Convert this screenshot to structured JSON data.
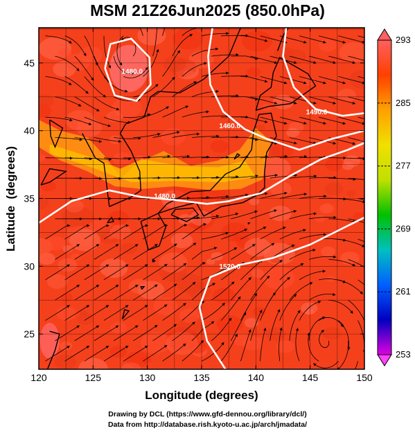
{
  "title": "MSM 21Z26Jun2025 (850.0hPa)",
  "credits": {
    "line1": "Drawing by DCL (https://www.gfd-dennou.org/library/dcl/)",
    "line2": "Data from http://database.rish.kyoto-u.ac.jp/arch/jmadata/"
  },
  "chart_data": {
    "type": "heatmap",
    "title": "MSM 21Z26Jun2025 (850.0hPa)",
    "xlabel": "Longitude (degrees)",
    "ylabel": "Latitude  (degrees)",
    "xlim": [
      120,
      150
    ],
    "ylim": [
      22.4,
      47.6
    ],
    "x_ticks": [
      120,
      125,
      130,
      135,
      140,
      145,
      150
    ],
    "y_ticks": [
      25,
      30,
      35,
      40,
      45
    ],
    "grid": true,
    "colorbar": {
      "min": 253,
      "max": 293,
      "ticks": [
        253,
        261,
        269,
        277,
        285,
        293
      ],
      "colors": [
        "#e000e0",
        "#0000c0",
        "#0060ff",
        "#00c0c0",
        "#00c000",
        "#c0e000",
        "#f0e000",
        "#ffa000",
        "#ff4000",
        "#ff6060"
      ]
    },
    "contour_labels": [
      {
        "text": "1520.0",
        "lon": 137.6,
        "lat": 29.8
      },
      {
        "text": "1480.0",
        "lon": 131.6,
        "lat": 35.0
      },
      {
        "text": "1460.0",
        "lon": 137.6,
        "lat": 40.2
      },
      {
        "text": "1490.0",
        "lon": 145.6,
        "lat": 41.2
      },
      {
        "text": "1480.0",
        "lon": 128.6,
        "lat": 44.2
      }
    ],
    "contours": [
      {
        "level": "1520.0",
        "points": [
          [
            137.2,
            22.4
          ],
          [
            135.5,
            24.5
          ],
          [
            134.8,
            27.0
          ],
          [
            135.8,
            29.2
          ],
          [
            138.5,
            30.1
          ],
          [
            141.5,
            30.6
          ],
          [
            145.0,
            31.6
          ],
          [
            148.0,
            32.8
          ],
          [
            150.0,
            33.6
          ]
        ]
      },
      {
        "level": "1480.0",
        "points": [
          [
            120.0,
            33.2
          ],
          [
            123.0,
            34.8
          ],
          [
            126.5,
            35.6
          ],
          [
            129.5,
            35.1
          ],
          [
            132.5,
            34.9
          ],
          [
            135.5,
            34.6
          ],
          [
            137.5,
            34.8
          ],
          [
            140.5,
            35.4
          ],
          [
            143.0,
            36.6
          ],
          [
            146.0,
            37.9
          ],
          [
            148.5,
            38.6
          ],
          [
            150.0,
            39.1
          ]
        ]
      },
      {
        "level": "1460.0",
        "points": [
          [
            136.0,
            47.6
          ],
          [
            135.6,
            45.5
          ],
          [
            135.8,
            43.4
          ],
          [
            137.0,
            41.4
          ],
          [
            139.0,
            40.1
          ],
          [
            141.0,
            39.4
          ],
          [
            144.0,
            38.6
          ],
          [
            147.0,
            39.4
          ],
          [
            150.0,
            40.0
          ]
        ]
      },
      {
        "level": "1490.0",
        "points": [
          [
            142.8,
            47.6
          ],
          [
            142.5,
            45.5
          ],
          [
            143.5,
            43.2
          ],
          [
            145.5,
            41.6
          ],
          [
            148.0,
            41.1
          ],
          [
            150.0,
            41.3
          ]
        ]
      },
      {
        "level": "1480.0",
        "points": [
          [
            126.1,
            44.6
          ],
          [
            126.6,
            46.4
          ],
          [
            128.5,
            46.8
          ],
          [
            130.2,
            45.4
          ],
          [
            130.3,
            43.4
          ],
          [
            129.0,
            42.2
          ],
          [
            127.0,
            42.6
          ],
          [
            126.1,
            44.6
          ]
        ]
      }
    ],
    "coastlines": [
      [
        [
          129.4,
          33.3
        ],
        [
          130.1,
          31.2
        ],
        [
          131.1,
          31.5
        ],
        [
          131.7,
          32.9
        ],
        [
          131.0,
          33.9
        ],
        [
          129.4,
          33.3
        ]
      ],
      [
        [
          131.0,
          33.9
        ],
        [
          132.5,
          34.3
        ],
        [
          134.5,
          34.7
        ],
        [
          135.2,
          33.7
        ],
        [
          136.8,
          34.4
        ],
        [
          138.8,
          34.7
        ],
        [
          140.0,
          35.2
        ],
        [
          140.8,
          35.8
        ],
        [
          140.8,
          37.0
        ],
        [
          141.0,
          38.4
        ],
        [
          141.9,
          39.6
        ],
        [
          141.4,
          41.3
        ],
        [
          140.3,
          41.2
        ],
        [
          139.8,
          40.0
        ],
        [
          139.6,
          38.6
        ],
        [
          138.5,
          37.3
        ],
        [
          137.2,
          36.8
        ],
        [
          135.8,
          35.6
        ],
        [
          134.0,
          35.5
        ],
        [
          131.8,
          34.6
        ],
        [
          131.0,
          33.9
        ]
      ],
      [
        [
          132.2,
          33.8
        ],
        [
          133.6,
          33.3
        ],
        [
          134.7,
          33.8
        ],
        [
          134.2,
          34.3
        ],
        [
          132.6,
          34.2
        ],
        [
          132.2,
          33.8
        ]
      ],
      [
        [
          140.0,
          41.5
        ],
        [
          141.2,
          41.8
        ],
        [
          143.2,
          42.0
        ],
        [
          145.5,
          43.3
        ],
        [
          144.8,
          44.2
        ],
        [
          142.2,
          45.4
        ],
        [
          141.6,
          44.3
        ],
        [
          141.4,
          43.2
        ],
        [
          140.4,
          42.6
        ],
        [
          140.0,
          41.5
        ]
      ],
      [
        [
          126.5,
          34.4
        ],
        [
          128.5,
          35.1
        ],
        [
          129.4,
          35.6
        ],
        [
          129.3,
          37.0
        ],
        [
          128.5,
          38.5
        ],
        [
          127.5,
          39.8
        ],
        [
          128.0,
          40.5
        ],
        [
          129.7,
          41.0
        ],
        [
          130.3,
          42.5
        ],
        [
          131.0,
          42.9
        ]
      ],
      [
        [
          126.3,
          33.2
        ],
        [
          126.9,
          33.3
        ],
        [
          126.7,
          33.6
        ],
        [
          126.3,
          33.2
        ]
      ],
      [
        [
          120.2,
          36.0
        ],
        [
          121.0,
          37.2
        ],
        [
          122.5,
          37.0
        ],
        [
          121.0,
          36.2
        ],
        [
          120.2,
          36.0
        ]
      ],
      [
        [
          121.0,
          40.8
        ],
        [
          122.2,
          40.2
        ],
        [
          121.5,
          38.8
        ],
        [
          121.1,
          39.6
        ],
        [
          121.0,
          40.8
        ]
      ],
      [
        [
          124.0,
          39.8
        ],
        [
          125.2,
          38.0
        ],
        [
          126.0,
          37.6
        ],
        [
          126.5,
          34.4
        ]
      ],
      [
        [
          131.0,
          42.9
        ],
        [
          133.0,
          42.8
        ],
        [
          135.2,
          43.8
        ],
        [
          137.5,
          45.5
        ],
        [
          138.6,
          47.6
        ]
      ],
      [
        [
          142.0,
          45.9
        ],
        [
          142.5,
          47.0
        ],
        [
          143.0,
          47.6
        ]
      ],
      [
        [
          121.0,
          25.2
        ],
        [
          121.9,
          25.0
        ],
        [
          121.5,
          23.8
        ],
        [
          120.8,
          22.4
        ]
      ],
      [
        [
          127.7,
          26.1
        ],
        [
          128.3,
          26.7
        ],
        [
          127.9,
          26.8
        ],
        [
          127.7,
          26.1
        ]
      ],
      [
        [
          129.5,
          28.3
        ],
        [
          129.7,
          28.5
        ],
        [
          129.4,
          28.5
        ],
        [
          129.5,
          28.3
        ]
      ],
      [
        [
          130.5,
          30.3
        ],
        [
          130.7,
          30.4
        ],
        [
          130.5,
          30.5
        ],
        [
          130.5,
          30.3
        ]
      ],
      [
        [
          139.3,
          33.1
        ],
        [
          139.4,
          33.2
        ],
        [
          139.3,
          33.2
        ],
        [
          139.3,
          33.1
        ]
      ],
      [
        [
          138.0,
          37.9
        ],
        [
          138.5,
          38.2
        ],
        [
          138.3,
          38.3
        ],
        [
          138.0,
          37.9
        ]
      ]
    ],
    "warm_region": [
      [
        120.0,
        40.8
      ],
      [
        122.0,
        40.0
      ],
      [
        124.5,
        39.5
      ],
      [
        126.0,
        38.2
      ],
      [
        127.6,
        36.5
      ],
      [
        129.0,
        37.6
      ],
      [
        131.5,
        38.5
      ],
      [
        134.0,
        37.4
      ],
      [
        136.5,
        37.8
      ],
      [
        138.5,
        38.6
      ],
      [
        140.0,
        40.2
      ],
      [
        141.4,
        39.2
      ],
      [
        140.6,
        36.4
      ],
      [
        138.6,
        35.7
      ],
      [
        136.0,
        35.6
      ],
      [
        132.5,
        35.9
      ],
      [
        129.5,
        35.7
      ],
      [
        127.0,
        35.9
      ],
      [
        124.5,
        37.0
      ],
      [
        122.0,
        37.8
      ],
      [
        120.0,
        38.8
      ]
    ],
    "wind_field": "streamlines with arrows"
  }
}
